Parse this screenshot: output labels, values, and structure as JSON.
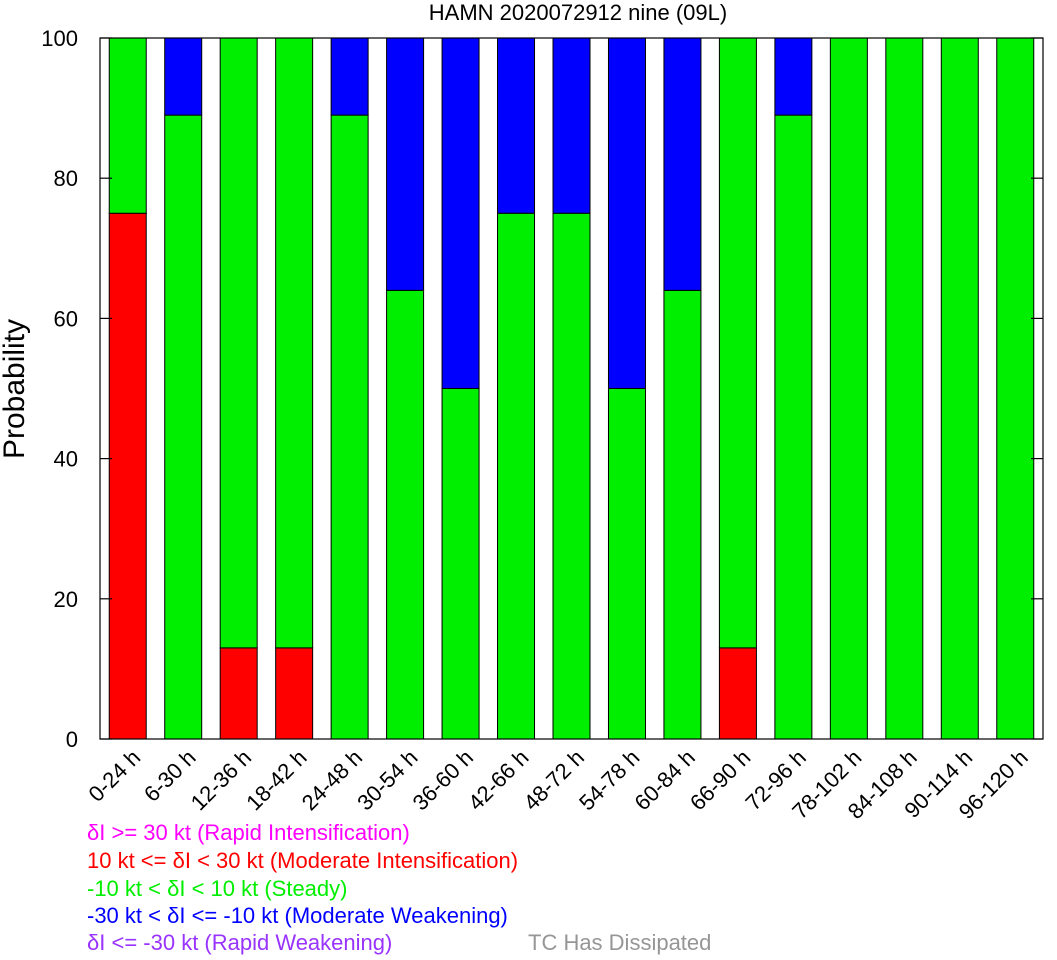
{
  "chart_data": {
    "type": "bar",
    "stacked": true,
    "title": "HAMN 2020072912 nine (09L)",
    "xlabel": "",
    "ylabel": "Probability",
    "ylim": [
      0,
      100
    ],
    "yticks": [
      0,
      20,
      40,
      60,
      80,
      100
    ],
    "grid": false,
    "categories": [
      "0-24 h",
      "6-30 h",
      "12-36 h",
      "18-42 h",
      "24-48 h",
      "30-54 h",
      "36-60 h",
      "42-66 h",
      "48-72 h",
      "54-78 h",
      "60-84 h",
      "66-90 h",
      "72-96 h",
      "78-102 h",
      "84-108 h",
      "90-114 h",
      "96-120 h"
    ],
    "series": [
      {
        "name": "Rapid Intensification",
        "color": "#ff00ff",
        "values": [
          0,
          0,
          0,
          0,
          0,
          0,
          0,
          0,
          0,
          0,
          0,
          0,
          0,
          0,
          0,
          0,
          0
        ]
      },
      {
        "name": "Moderate Intensification",
        "color": "#ff0000",
        "values": [
          75,
          0,
          13,
          13,
          0,
          0,
          0,
          0,
          0,
          0,
          0,
          13,
          0,
          0,
          0,
          0,
          0
        ]
      },
      {
        "name": "Steady",
        "color": "#00ee00",
        "values": [
          25,
          89,
          87,
          87,
          89,
          64,
          50,
          75,
          75,
          50,
          64,
          87,
          89,
          100,
          100,
          100,
          100
        ]
      },
      {
        "name": "Moderate Weakening",
        "color": "#0000ff",
        "values": [
          0,
          11,
          0,
          0,
          11,
          36,
          50,
          25,
          25,
          50,
          36,
          0,
          11,
          0,
          0,
          0,
          0
        ]
      },
      {
        "name": "Rapid Weakening",
        "color": "#9933ff",
        "values": [
          0,
          0,
          0,
          0,
          0,
          0,
          0,
          0,
          0,
          0,
          0,
          0,
          0,
          0,
          0,
          0,
          0
        ]
      }
    ],
    "legend": {
      "placement": "bottom-left",
      "entries": [
        {
          "text": "δI >= 30 kt (Rapid Intensification)",
          "color": "#ff00ff"
        },
        {
          "text": "10 kt <= δI < 30 kt (Moderate Intensification)",
          "color": "#ff0000"
        },
        {
          "text": "-10 kt < δI < 10 kt (Steady)",
          "color": "#00ee00"
        },
        {
          "text": "-30 kt < δI <= -10 kt (Moderate Weakening)",
          "color": "#0000ff"
        },
        {
          "text": "δI <= -30 kt (Rapid Weakening)",
          "color": "#9933ff"
        }
      ]
    },
    "note": {
      "text": "TC Has Dissipated",
      "color": "#969696"
    }
  }
}
